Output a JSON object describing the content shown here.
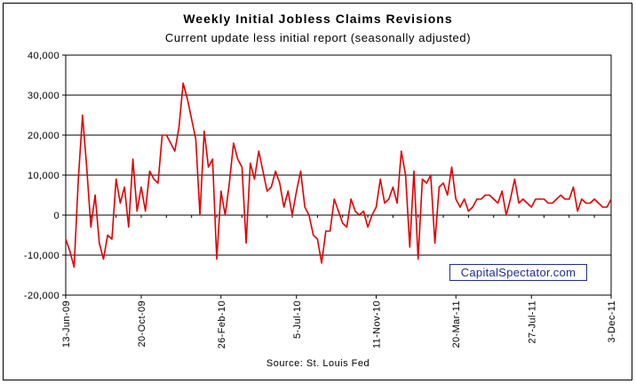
{
  "title": "Weekly Initial Jobless Claims Revisions",
  "subtitle": "Current update less initial report (seasonally adjusted)",
  "source": "Source: St. Louis Fed",
  "watermark": "CapitalSpectator.com",
  "chart_data": {
    "type": "line",
    "title": "Weekly Initial Jobless Claims Revisions",
    "subtitle": "Current update less initial report (seasonally adjusted)",
    "ylim": [
      -20000,
      40000
    ],
    "y_ticks": [
      "40,000",
      "30,000",
      "20,000",
      "10,000",
      "0",
      "-10,000",
      "-20,000"
    ],
    "y_tick_values": [
      40000,
      30000,
      20000,
      10000,
      0,
      -10000,
      -20000
    ],
    "x_tick_labels": [
      "13-Jun-09",
      "20-Oct-09",
      "26-Feb-10",
      "5-Jul-10",
      "11-Nov-10",
      "20-Mar-11",
      "27-Jul-11",
      "3-Dec-11"
    ],
    "x_tick_indices": [
      0,
      18,
      37,
      55,
      74,
      93,
      111,
      130
    ],
    "grid": true,
    "line_color": "#e00000",
    "series": [
      {
        "values": [
          -6000,
          -9000,
          -13000,
          9000,
          25000,
          12000,
          -3000,
          5000,
          -7000,
          -11000,
          -5000,
          -6000,
          9000,
          3000,
          7000,
          -3000,
          14000,
          1000,
          7000,
          1000,
          11000,
          9000,
          8000,
          20000,
          20000,
          18000,
          16000,
          22000,
          33000,
          29000,
          24000,
          19000,
          0,
          21000,
          12000,
          14000,
          -11000,
          6000,
          0,
          8000,
          18000,
          14000,
          12000,
          -7000,
          13000,
          9000,
          16000,
          11000,
          6000,
          7000,
          11000,
          8000,
          2000,
          6000,
          0,
          6000,
          11000,
          2000,
          0,
          -5000,
          -6000,
          -12000,
          -4000,
          -4000,
          4000,
          1000,
          -2000,
          -3000,
          4000,
          1000,
          0,
          1000,
          -3000,
          0,
          2000,
          9000,
          3000,
          4000,
          7000,
          3000,
          16000,
          10000,
          -8000,
          11000,
          -11000,
          9000,
          8000,
          10000,
          -7000,
          7000,
          8000,
          5000,
          12000,
          4000,
          2000,
          4000,
          1000,
          2000,
          4000,
          4000,
          5000,
          5000,
          4000,
          3000,
          6000,
          0,
          4000,
          9000,
          3000,
          4000,
          3000,
          2000,
          4000,
          4000,
          4000,
          3000,
          3000,
          4000,
          5000,
          4000,
          4000,
          7000,
          1000,
          4000,
          3000,
          3000,
          4000,
          3000,
          2000,
          2000,
          4000
        ]
      }
    ]
  }
}
